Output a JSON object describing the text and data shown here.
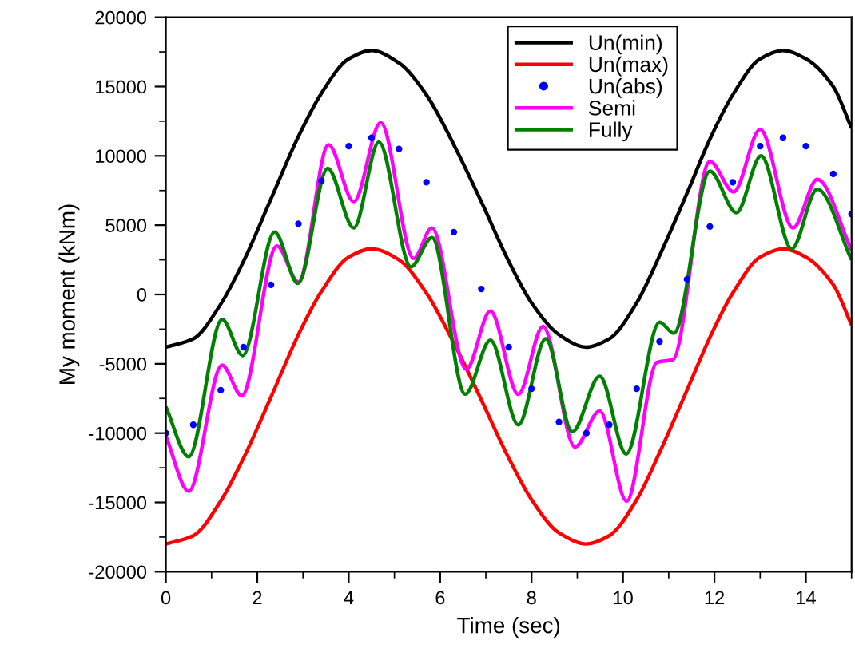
{
  "chart_data": {
    "type": "line",
    "xlabel": "Time (sec)",
    "ylabel": "My moment (kNm)",
    "xlim": [
      0,
      15
    ],
    "ylim": [
      -20000,
      20000
    ],
    "xticks": [
      0,
      {
        "value": 1,
        "label": null
      },
      2,
      {
        "value": 3,
        "label": null
      },
      4,
      {
        "value": 5,
        "label": null
      },
      6,
      {
        "value": 7,
        "label": null
      },
      8,
      {
        "value": 9,
        "label": null
      },
      10,
      {
        "value": 11,
        "label": null
      },
      12,
      {
        "value": 13,
        "label": null
      },
      14,
      {
        "value": 15,
        "label": null
      }
    ],
    "yticks": [
      -20000,
      {
        "value": -17500,
        "label": null
      },
      -15000,
      {
        "value": -12500,
        "label": null
      },
      -10000,
      {
        "value": -7500,
        "label": null
      },
      -5000,
      {
        "value": -2500,
        "label": null
      },
      0,
      {
        "value": 2500,
        "label": null
      },
      5000,
      {
        "value": 7500,
        "label": null
      },
      10000,
      {
        "value": 12500,
        "label": null
      },
      15000,
      {
        "value": 17500,
        "label": null
      },
      20000
    ],
    "grid": false,
    "legend": "top right",
    "x": [
      0,
      0.6,
      1.2,
      1.7,
      2.3,
      2.9,
      3.4,
      4.0,
      4.5,
      5.1,
      5.7,
      6.3,
      6.9,
      7.5,
      8.0,
      8.6,
      9.2,
      9.7,
      10.3,
      10.8,
      11.4,
      11.9,
      12.4,
      13.0,
      13.5,
      14.0,
      14.6,
      15
    ],
    "series": [
      {
        "name": "Un(min)",
        "color": "#000000",
        "values": [
          -3800,
          -3200,
          -700,
          2400,
          6900,
          11400,
          14500,
          17000,
          17600,
          16700,
          14400,
          10800,
          6700,
          2400,
          -600,
          -2900,
          -3800,
          -3200,
          -600,
          2800,
          7300,
          11200,
          14400,
          17000,
          17600,
          17000,
          15000,
          12000
        ]
      },
      {
        "name": "Un(max)",
        "color": "#ff0000",
        "values": [
          -18000,
          -17400,
          -14900,
          -11800,
          -7400,
          -2900,
          200,
          2700,
          3300,
          2500,
          100,
          -3500,
          -7600,
          -11800,
          -14800,
          -17200,
          -18000,
          -17400,
          -14800,
          -11400,
          -6900,
          -3100,
          100,
          2700,
          3300,
          2700,
          700,
          -2200
        ]
      },
      {
        "name": "Un(abs)",
        "color": "#0000ff",
        "type": "scatter",
        "marker": "circle",
        "values": [
          -10000,
          -9400,
          -6900,
          -3800,
          700,
          5100,
          8200,
          10700,
          11300,
          10500,
          8100,
          4500,
          400,
          -3800,
          -6800,
          -9200,
          -10000,
          -9400,
          -6800,
          -3400,
          1100,
          4900,
          8100,
          10700,
          11300,
          10700,
          8700,
          5800
        ]
      },
      {
        "name": "Semi",
        "color": "#ff00ff",
        "x": [
          0,
          0.5,
          1.23,
          1.66,
          2.43,
          2.9,
          3.56,
          4.11,
          4.7,
          5.42,
          5.82,
          6.57,
          7.1,
          7.71,
          8.25,
          8.95,
          9.49,
          10.08,
          10.74,
          11.09,
          11.9,
          12.42,
          13.0,
          13.72,
          14.25,
          15
        ],
        "values": [
          -10200,
          -14200,
          -5100,
          -7300,
          3500,
          900,
          10800,
          6700,
          12400,
          2600,
          4800,
          -5400,
          -1200,
          -7200,
          -2300,
          -11000,
          -8400,
          -14900,
          -4900,
          -4700,
          9600,
          7400,
          11900,
          4800,
          8300,
          3200
        ]
      },
      {
        "name": "Fully",
        "color": "#008000",
        "x": [
          0,
          0.5,
          1.23,
          1.68,
          2.38,
          2.89,
          3.54,
          4.11,
          4.66,
          5.36,
          5.82,
          6.55,
          7.1,
          7.71,
          8.31,
          8.89,
          9.49,
          10.07,
          10.8,
          11.11,
          11.9,
          12.48,
          13.02,
          13.69,
          14.25,
          15
        ],
        "values": [
          -8100,
          -11700,
          -1800,
          -4400,
          4500,
          800,
          9100,
          4800,
          11000,
          2000,
          4100,
          -7200,
          -3300,
          -9400,
          -3200,
          -9900,
          -5900,
          -11500,
          -2000,
          -2800,
          8900,
          5900,
          10000,
          3300,
          7600,
          2500
        ]
      }
    ]
  }
}
